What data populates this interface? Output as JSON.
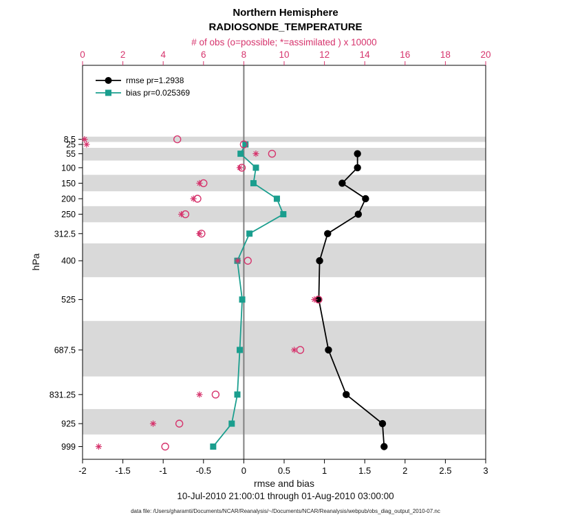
{
  "chart_data": {
    "type": "line",
    "title": "Northern Hemisphere",
    "subtitle": "RADIOSONDE_TEMPERATURE",
    "xlabel": "rmse and bias",
    "xlabel_top": "# of obs (o=possible; *=assimilated ) x 10000",
    "ylabel": "hPa",
    "xlim": [
      -2,
      3
    ],
    "xlim_top": [
      0,
      20
    ],
    "ylim": [
      -230,
      1040
    ],
    "x_ticks_bottom": [
      -2,
      -1.5,
      -1,
      -0.5,
      0,
      0.5,
      1,
      1.5,
      2,
      2.5,
      3
    ],
    "x_ticks_top": [
      0,
      2,
      4,
      6,
      8,
      10,
      12,
      14,
      16,
      18,
      20
    ],
    "y_ticks": [
      8.5,
      25,
      55,
      100,
      150,
      200,
      250,
      312.5,
      400,
      525,
      687.5,
      831.25,
      925,
      999
    ],
    "gray_bands": [
      [
        0,
        17
      ],
      [
        36,
        77
      ],
      [
        123,
        176
      ],
      [
        224,
        276
      ],
      [
        344,
        453
      ],
      [
        594,
        773
      ],
      [
        878,
        960
      ]
    ],
    "band_color": "#d9d9d9",
    "zero_line_color": "#808080",
    "grid": "off",
    "legend_position": "top-left-inside",
    "series": [
      {
        "name": "rmse pr=1.2938",
        "color": "#000000",
        "marker": "circle",
        "axis": "bottom",
        "levels": [
          55,
          100,
          150,
          200,
          250,
          312.5,
          400,
          525,
          687.5,
          831.25,
          925,
          999
        ],
        "values": [
          1.41,
          1.41,
          1.22,
          1.51,
          1.42,
          1.04,
          0.94,
          0.93,
          1.05,
          1.27,
          1.72,
          1.74
        ]
      },
      {
        "name": "bias pr=0.025369",
        "color": "#1a9e8e",
        "marker": "square",
        "axis": "bottom",
        "levels": [
          25,
          55,
          100,
          150,
          200,
          250,
          312.5,
          400,
          525,
          687.5,
          831.25,
          925,
          999
        ],
        "values": [
          0.02,
          -0.04,
          0.15,
          0.12,
          0.41,
          0.49,
          0.07,
          -0.08,
          -0.02,
          -0.05,
          -0.08,
          -0.15,
          -0.38
        ]
      }
    ],
    "obs_counts": {
      "axis": "top",
      "units_multiplier": 10000,
      "color": "#d6336c",
      "possible": {
        "marker": "open-circle",
        "levels": [
          8.5,
          25,
          55,
          100,
          150,
          200,
          250,
          312.5,
          400,
          525,
          687.5,
          831.25,
          925,
          999
        ],
        "values": [
          4.7,
          8.0,
          9.4,
          7.9,
          6.0,
          5.7,
          5.1,
          5.9,
          8.2,
          11.7,
          10.8,
          6.6,
          4.8,
          4.1
        ]
      },
      "assimilated": {
        "marker": "asterisk",
        "levels": [
          8.5,
          25,
          55,
          100,
          150,
          200,
          250,
          312.5,
          400,
          525,
          687.5,
          831.25,
          925,
          999
        ],
        "values": [
          0.1,
          0.2,
          8.6,
          7.8,
          5.8,
          5.5,
          4.9,
          5.8,
          7.7,
          11.5,
          10.5,
          5.8,
          3.5,
          0.8
        ]
      }
    }
  },
  "footer": {
    "date_range": "10-Jul-2010 21:00:01 through 01-Aug-2010 03:00:00",
    "data_file": "data file: /Users/gharamti/Documents/NCAR/Reanalysis/~/Documents/NCAR/Reanalysis/webpub/obs_diag_output_2010-07.nc"
  }
}
